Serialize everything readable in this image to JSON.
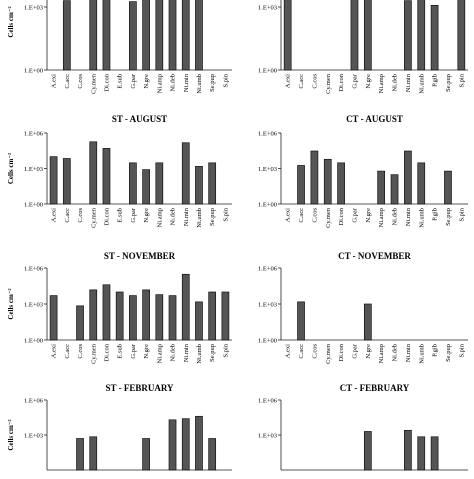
{
  "chart_data": [
    {
      "type": "bar",
      "title": "",
      "ylabel": "Cells cm⁻²",
      "yscale": "log",
      "ytick_labels": [
        "1.E+00",
        "1.E+03"
      ],
      "categories": [
        "A.exi",
        "C.acc",
        "C.cos",
        "Cy.men",
        "Di.con",
        "E.sub",
        "G.par",
        "N.gre",
        "Ni.amp",
        "Ni.deb",
        "Ni.min",
        "Ni.umb",
        "Se.pup",
        "S.pin"
      ],
      "values": [
        null,
        2000,
        null,
        25000,
        25000,
        null,
        1800,
        5000,
        3500,
        40000,
        400000,
        60000,
        null,
        null
      ]
    },
    {
      "type": "bar",
      "title": "",
      "ylabel": "",
      "yscale": "log",
      "ytick_labels": [
        "1.E+00",
        "1.E+03"
      ],
      "categories": [
        "A.exi",
        "C.acc",
        "C.cos",
        "Cy.men",
        "Di.con",
        "G.par",
        "N.gre",
        "Ni.amp",
        "Ni.deb",
        "Ni.min",
        "Ni.umb",
        "P.gib",
        "Se.pup",
        "S.pin"
      ],
      "values": [
        3000,
        null,
        null,
        null,
        null,
        5000,
        5000,
        null,
        null,
        2000,
        3000,
        1200,
        null,
        4000
      ]
    },
    {
      "type": "bar",
      "title": "ST - AUGUST",
      "ylabel": "Cells cm⁻²",
      "yscale": "log",
      "ytick_labels": [
        "1.E+00",
        "1.E+03",
        "1.E+06"
      ],
      "categories": [
        "A.exi",
        "C.acc",
        "C.cos",
        "Cy.men",
        "Di.con",
        "E.sub",
        "G.par",
        "N.gre",
        "Ni.amp",
        "Ni.deb",
        "Ni.min",
        "Ni.umb",
        "Se.pup",
        "S.pin"
      ],
      "values": [
        10000,
        7000,
        null,
        180000,
        50000,
        null,
        3000,
        800,
        3000,
        null,
        150000,
        1500,
        3000,
        null
      ]
    },
    {
      "type": "bar",
      "title": "CT - AUGUST",
      "ylabel": "",
      "yscale": "log",
      "ytick_labels": [
        "1.E+00",
        "1.E+03",
        "1.E+06"
      ],
      "categories": [
        "A.exi",
        "C.acc",
        "C.cos",
        "Cy.men",
        "Di.con",
        "G.par",
        "N.gre",
        "Ni.amp",
        "Ni.deb",
        "Ni.min",
        "Ni.umb",
        "P.gib",
        "Se.pup",
        "S.pin"
      ],
      "values": [
        null,
        1800,
        30000,
        6000,
        3000,
        null,
        null,
        600,
        300,
        30000,
        3000,
        null,
        600,
        null
      ]
    },
    {
      "type": "bar",
      "title": "ST - NOVEMBER",
      "ylabel": "Cells cm⁻²",
      "yscale": "log",
      "ytick_labels": [
        "1.E+00",
        "1.E+03",
        "1.E+06"
      ],
      "categories": [
        "A.exi",
        "C.acc",
        "C.cos",
        "Cy.men",
        "Di.con",
        "E.sub",
        "G.par",
        "N.gre",
        "Ni.amp",
        "Ni.deb",
        "Ni.min",
        "Ni.umb",
        "Se.pup",
        "S.pin"
      ],
      "values": [
        5000,
        null,
        700,
        15000,
        40000,
        10000,
        5000,
        15000,
        6000,
        5000,
        300000,
        1500,
        10000,
        10000
      ]
    },
    {
      "type": "bar",
      "title": "CT - NOVEMBER",
      "ylabel": "",
      "yscale": "log",
      "ytick_labels": [
        "1.E+00",
        "1.E+03",
        "1.E+06"
      ],
      "categories": [
        "A.exi",
        "C.acc",
        "C.cos",
        "Cy.men",
        "Di.con",
        "G.par",
        "N.gre",
        "Ni.amp",
        "Ni.deb",
        "Ni.min",
        "Ni.umb",
        "P.gib",
        "Se.pup",
        "S.pin"
      ],
      "values": [
        null,
        1500,
        null,
        null,
        null,
        null,
        1000,
        null,
        null,
        null,
        null,
        null,
        null,
        null
      ]
    },
    {
      "type": "bar",
      "title": "ST - FEBRUARY",
      "ylabel": "Cells cm⁻²",
      "yscale": "log",
      "ytick_labels": [
        "1.E+03",
        "1.E+06"
      ],
      "categories": [
        "A.exi",
        "C.acc",
        "C.cos",
        "Cy.men",
        "Di.con",
        "E.sub",
        "G.par",
        "N.gre",
        "Ni.amp",
        "Ni.deb",
        "Ni.min",
        "Ni.umb",
        "Se.pup",
        "S.pin"
      ],
      "values": [
        null,
        null,
        500,
        700,
        null,
        null,
        null,
        500,
        null,
        20000,
        25000,
        40000,
        500,
        null
      ]
    },
    {
      "type": "bar",
      "title": "CT - FEBRUARY",
      "ylabel": "",
      "yscale": "log",
      "ytick_labels": [
        "1.E+03",
        "1.E+06"
      ],
      "categories": [
        "A.exi",
        "C.acc",
        "C.cos",
        "Cy.men",
        "Di.con",
        "G.par",
        "N.gre",
        "Ni.amp",
        "Ni.deb",
        "Ni.min",
        "Ni.umb",
        "P.gib",
        "Se.pup",
        "S.pin"
      ],
      "values": [
        null,
        null,
        null,
        null,
        null,
        null,
        2000,
        null,
        null,
        2500,
        700,
        700,
        null,
        null
      ]
    }
  ]
}
